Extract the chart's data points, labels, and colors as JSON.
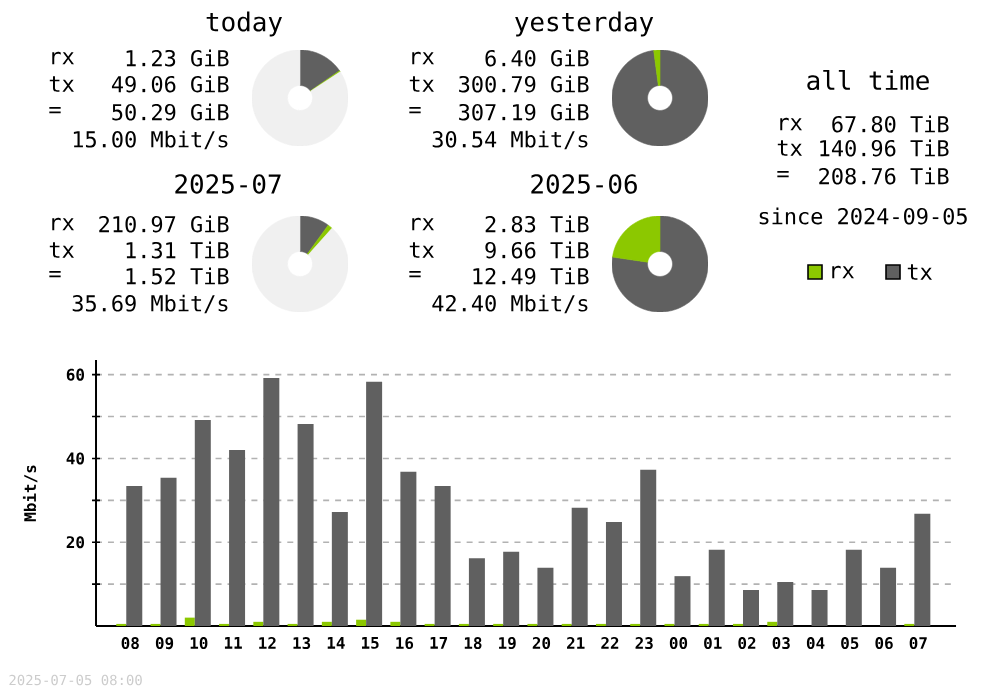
{
  "chart_data": [
    {
      "type": "donut",
      "title": "today",
      "categories": [
        null,
        null,
        null
      ],
      "values": [
        15.4,
        0.4,
        84.2
      ],
      "colors": [
        "#606060",
        "#8cc800",
        "#f0f0f0"
      ],
      "annotations": [
        "rx",
        "1.23 GiB",
        "tx",
        "49.06 GiB",
        "=",
        "50.29 GiB",
        "15.00 Mbit/s"
      ]
    },
    {
      "type": "donut",
      "title": "yesterday",
      "categories": [
        null,
        null
      ],
      "values": [
        97.9,
        2.1
      ],
      "colors": [
        "#606060",
        "#8cc800"
      ],
      "annotations": [
        "rx",
        "6.40 GiB",
        "tx",
        "300.79 GiB",
        "=",
        "307.19 GiB",
        "30.54 Mbit/s"
      ]
    },
    {
      "type": "other",
      "title": "all time",
      "annotations": [
        "rx",
        "67.80 TiB",
        "tx",
        "140.96 TiB",
        "=",
        "208.76 TiB",
        "since 2024-09-05"
      ]
    },
    {
      "type": "donut",
      "title": "2025-07",
      "categories": [
        null,
        null,
        null
      ],
      "values": [
        10.0,
        1.6,
        88.4
      ],
      "colors": [
        "#606060",
        "#8cc800",
        "#f0f0f0"
      ],
      "annotations": [
        "rx",
        "210.97 GiB",
        "tx",
        "1.31 TiB",
        "=",
        "1.52 TiB",
        "35.69 Mbit/s"
      ]
    },
    {
      "type": "donut",
      "title": "2025-06",
      "categories": [
        null,
        null
      ],
      "values": [
        77.3,
        22.7
      ],
      "colors": [
        "#606060",
        "#8cc800"
      ],
      "annotations": [
        "rx",
        "2.83 TiB",
        "tx",
        "9.66 TiB",
        "=",
        "12.49 TiB",
        "42.40 Mbit/s"
      ]
    },
    {
      "type": "bar",
      "categories": [
        "08",
        "09",
        "10",
        "11",
        "12",
        "13",
        "14",
        "15",
        "16",
        "17",
        "18",
        "19",
        "20",
        "21",
        "22",
        "23",
        "00",
        "01",
        "02",
        "03",
        "04",
        "05",
        "06",
        "07"
      ],
      "series": [
        {
          "name": "rx",
          "color": "#8cc800",
          "values": [
            0.5,
            0.5,
            2.0,
            0.5,
            1.0,
            0.5,
            1.0,
            1.5,
            1.0,
            0.5,
            0.5,
            0.5,
            0.5,
            0.5,
            0.5,
            0.5,
            0.5,
            0.5,
            0.5,
            1.0,
            0,
            0,
            0,
            0.5
          ]
        },
        {
          "name": "tx",
          "color": "#606060",
          "values": [
            33.4,
            35.4,
            49.2,
            42.0,
            59.2,
            48.2,
            27.2,
            58.3,
            36.8,
            33.4,
            16.2,
            17.7,
            13.9,
            28.2,
            24.8,
            37.3,
            11.9,
            18.2,
            8.6,
            10.5,
            8.6,
            18.2,
            13.9,
            26.8
          ]
        }
      ],
      "ylabel": "Mbit/s",
      "ylim": [
        0,
        63.5
      ],
      "yticks": [
        {
          "value": 10,
          "label": null
        },
        20,
        {
          "value": 30,
          "label": null
        },
        40,
        {
          "value": 50,
          "label": null
        },
        60
      ],
      "grid": "y",
      "legend": "top right",
      "annotations": [
        "2025-07-05 08:00"
      ]
    }
  ]
}
